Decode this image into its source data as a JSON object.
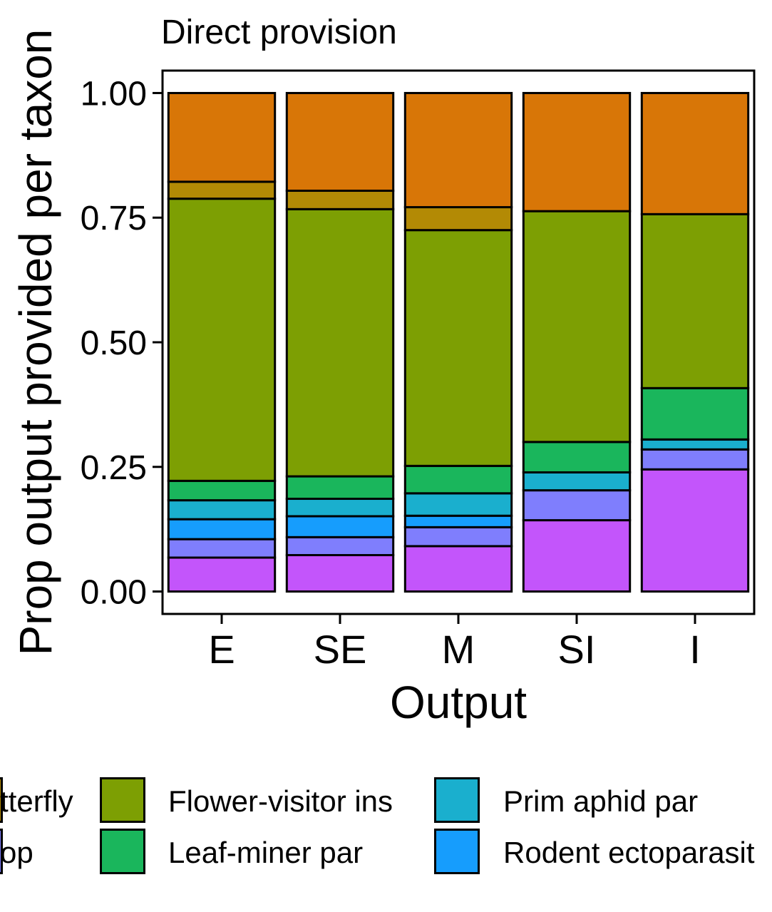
{
  "chart_data": {
    "type": "bar",
    "stacked": true,
    "title": "Direct provision",
    "xlabel": "Output",
    "ylabel": "Prop output provided per taxon",
    "ylim": [
      -0.045,
      1.045
    ],
    "yticks": [
      "0.00",
      "0.25",
      "0.50",
      "0.75",
      "1.00"
    ],
    "ytick_values": [
      0,
      0.25,
      0.5,
      0.75,
      1.0
    ],
    "categories": [
      "E",
      "SE",
      "M",
      "SI",
      "I"
    ],
    "grid": false,
    "legend_position": "bottom",
    "series": [
      {
        "name": "",
        "color": "#C355FB",
        "values": [
          0.068,
          0.073,
          0.091,
          0.143,
          0.245
        ]
      },
      {
        "name": "",
        "color": "#7F7EFD",
        "values": [
          0.037,
          0.036,
          0.038,
          0.06,
          0.04
        ]
      },
      {
        "name": "Rodent ectoparasit",
        "color": "#169DFD",
        "values": [
          0.04,
          0.042,
          0.023,
          0,
          0
        ]
      },
      {
        "name": "Prim aphid par",
        "color": "#1AAFCE",
        "values": [
          0.038,
          0.035,
          0.045,
          0.036,
          0.02
        ]
      },
      {
        "name": "Leaf-miner par",
        "color": "#1AB65C",
        "values": [
          0.039,
          0.045,
          0.055,
          0.061,
          0.103
        ]
      },
      {
        "name": "Flower-visitor ins",
        "color": "#7D9F03",
        "values": [
          0.566,
          0.536,
          0.473,
          0.463,
          0.349
        ]
      },
      {
        "name": "",
        "color": "#B38A05",
        "values": [
          0.034,
          0.037,
          0.046,
          0,
          0
        ]
      },
      {
        "name": "",
        "color": "#D87607",
        "values": [
          0.178,
          0.196,
          0.229,
          0.237,
          0.243
        ]
      }
    ],
    "legend_entries": [
      {
        "label": "tterfly",
        "color": "#B38A05"
      },
      {
        "label": "op",
        "color": "#7F7EFD"
      },
      {
        "label": "Flower-visitor ins",
        "color": "#7D9F03"
      },
      {
        "label": "Leaf-miner par",
        "color": "#1AB65C"
      },
      {
        "label": "Prim aphid par",
        "color": "#1AAFCE"
      },
      {
        "label": "Rodent ectoparasit",
        "color": "#169DFD"
      }
    ]
  }
}
